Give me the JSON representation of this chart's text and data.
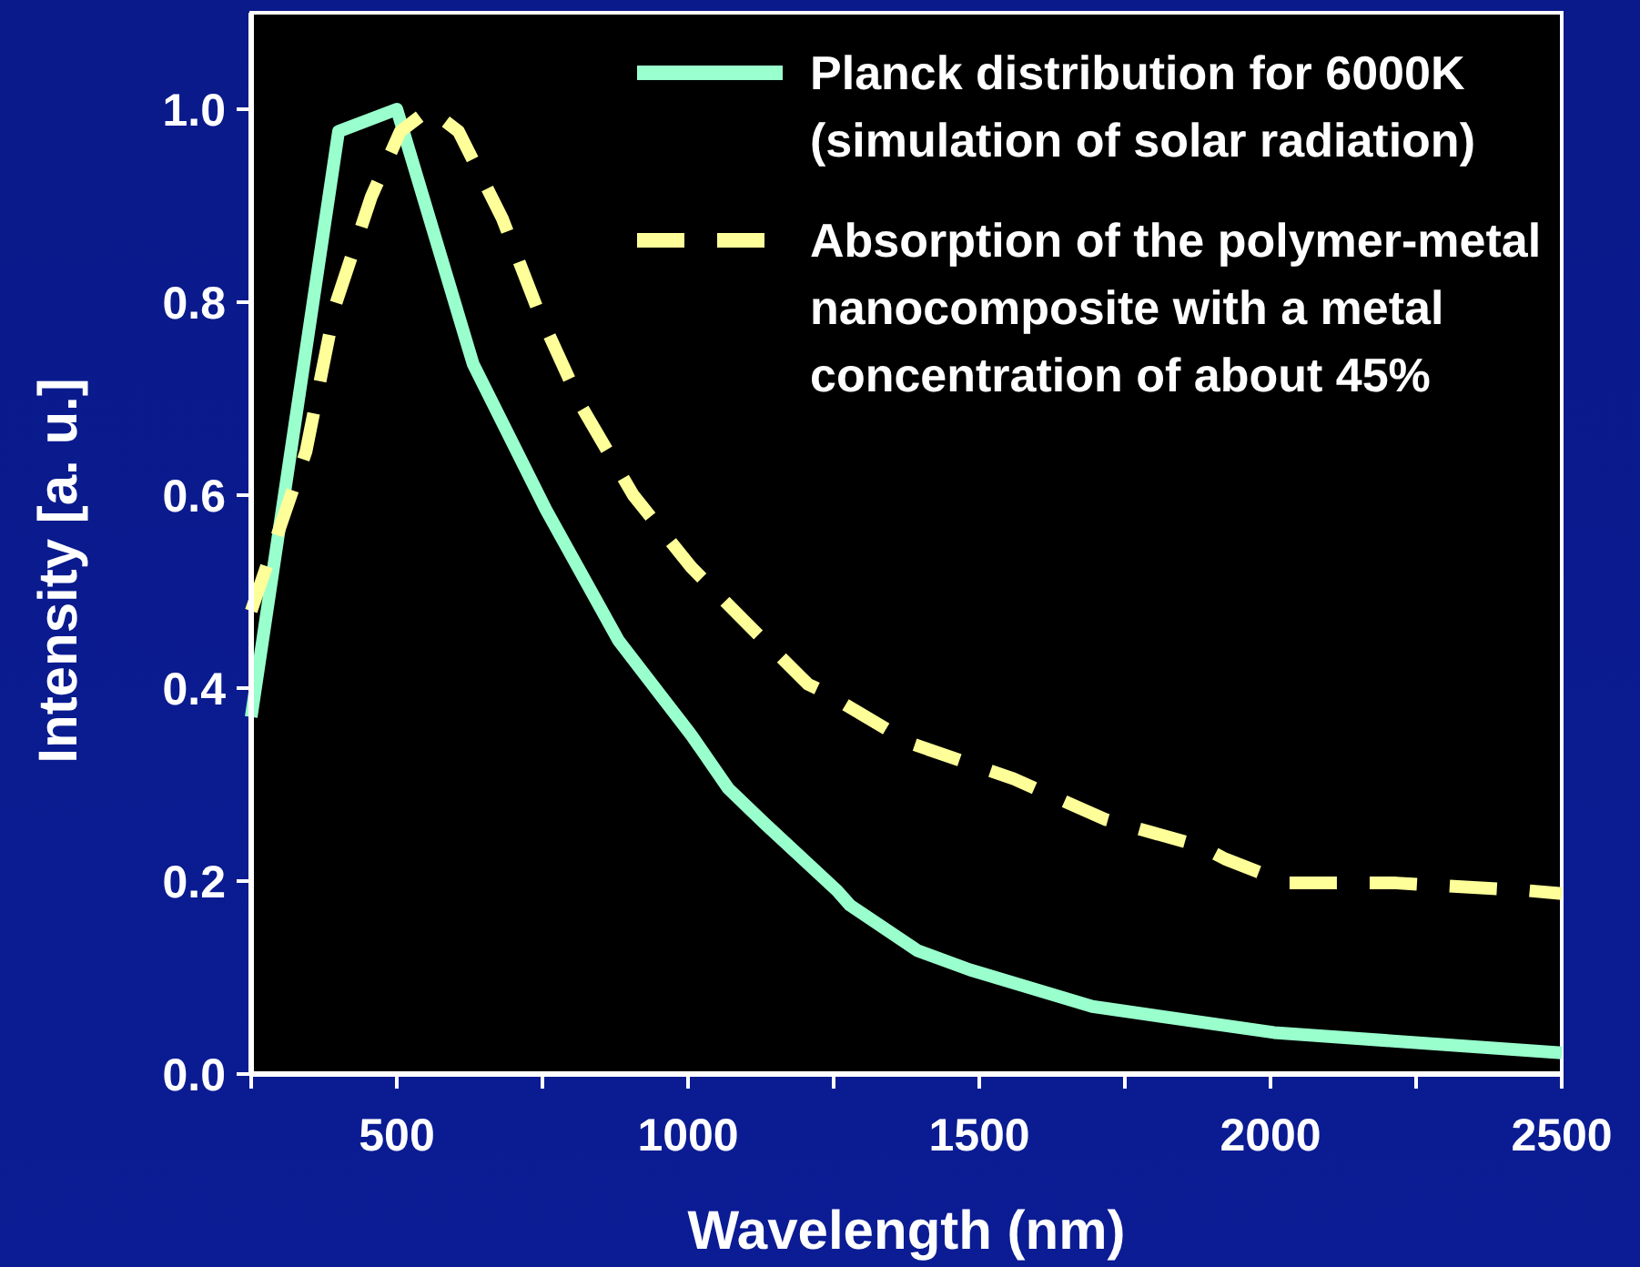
{
  "chart_data": {
    "type": "line",
    "xlabel": "Wavelength (nm)",
    "ylabel": "Intensity [a. u.]",
    "xlim": [
      250,
      2500
    ],
    "ylim": [
      0,
      1.1
    ],
    "xticks": [
      {
        "value": 250,
        "label": null
      },
      500,
      {
        "value": 750,
        "label": null
      },
      1000,
      {
        "value": 1250,
        "label": null
      },
      1500,
      {
        "value": 1750,
        "label": null
      },
      2000,
      {
        "value": 2250,
        "label": null
      },
      2500
    ],
    "yticks": [
      {
        "value": 0,
        "label": "0.0"
      },
      {
        "value": 0.2,
        "label": "0.2"
      },
      {
        "value": 0.4,
        "label": "0.4"
      },
      {
        "value": 0.6,
        "label": "0.6"
      },
      {
        "value": 0.8,
        "label": "0.8"
      },
      {
        "value": 1,
        "label": "1.0"
      }
    ],
    "legend": "top right",
    "grid": false,
    "series": [
      {
        "name": "Planck distribution for 6000K (simulation of solar radiation)",
        "color": "#99ffcc",
        "line_style": "solid",
        "x": [
          250,
          400,
          500,
          631,
          756,
          881,
          1006,
          1069,
          1131,
          1256,
          1278,
          1394,
          1484,
          1694,
          2006,
          2216,
          2500
        ],
        "values": [
          0.37,
          0.977,
          1.0,
          0.736,
          0.585,
          0.449,
          0.351,
          0.296,
          0.26,
          0.19,
          0.175,
          0.128,
          0.108,
          0.07,
          0.043,
          0.034,
          0.022
        ]
      },
      {
        "name": "Absorption of the polymer-metal nanocomposite with a metal concentration of about 45%",
        "color": "#ffff99",
        "line_style": "dashed",
        "x": [
          250,
          344,
          394,
          456,
          506,
          556,
          606,
          681,
          744,
          819,
          906,
          1006,
          1106,
          1206,
          1234,
          1381,
          1559,
          1716,
          1881,
          1922,
          2028,
          2216,
          2444,
          2500
        ],
        "values": [
          0.48,
          0.645,
          0.796,
          0.909,
          0.977,
          1.0,
          0.977,
          0.887,
          0.789,
          0.69,
          0.6,
          0.525,
          0.464,
          0.404,
          0.396,
          0.343,
          0.306,
          0.264,
          0.236,
          0.223,
          0.198,
          0.198,
          0.19,
          0.187
        ]
      }
    ]
  }
}
